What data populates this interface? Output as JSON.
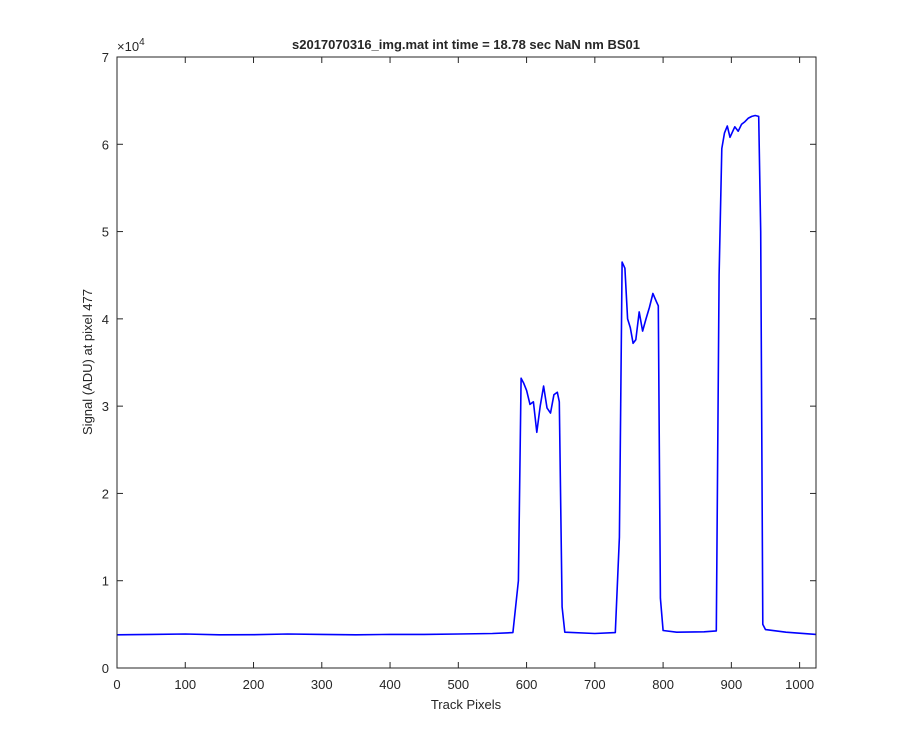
{
  "chart_data": {
    "type": "line",
    "title": "s2017070316_img.mat int time = 18.78 sec  NaN nm BS01",
    "xlabel": "Track Pixels",
    "ylabel": "Signal (ADU) at pixel 477",
    "exponent_label": "×10",
    "exponent_power": "4",
    "xlim": [
      0,
      1024
    ],
    "ylim": [
      0,
      70000
    ],
    "x_ticks": [
      0,
      100,
      200,
      300,
      400,
      500,
      600,
      700,
      800,
      900,
      1000
    ],
    "x_tick_labels": [
      "0",
      "100",
      "200",
      "300",
      "400",
      "500",
      "600",
      "700",
      "800",
      "900",
      "1000"
    ],
    "y_ticks": [
      0,
      10000,
      20000,
      30000,
      40000,
      50000,
      60000,
      70000
    ],
    "y_tick_labels": [
      "0",
      "1",
      "2",
      "3",
      "4",
      "5",
      "6",
      "7"
    ],
    "grid": false,
    "legend": "none",
    "line_color": "#0000ff",
    "axis_color": "#262626",
    "series": [
      {
        "x": [
          0,
          50,
          100,
          150,
          200,
          250,
          300,
          350,
          400,
          450,
          500,
          550,
          580,
          588,
          592,
          596,
          600,
          605,
          610,
          615,
          620,
          625,
          630,
          635,
          640,
          645,
          648,
          652,
          656,
          700,
          730,
          736,
          740,
          744,
          748,
          752,
          756,
          760,
          765,
          770,
          775,
          780,
          785,
          790,
          793,
          796,
          800,
          820,
          860,
          878,
          882,
          886,
          890,
          894,
          898,
          905,
          910,
          915,
          920,
          925,
          930,
          935,
          940,
          943,
          946,
          950,
          980,
          1024
        ],
        "y": [
          3800,
          3850,
          3900,
          3800,
          3820,
          3900,
          3850,
          3800,
          3850,
          3850,
          3900,
          3950,
          4050,
          10000,
          33200,
          32600,
          31800,
          30200,
          30500,
          27000,
          30000,
          32300,
          29800,
          29200,
          31300,
          31600,
          30500,
          7000,
          4100,
          3950,
          4050,
          15000,
          46500,
          45800,
          40000,
          39000,
          37200,
          37600,
          40800,
          38600,
          40000,
          41300,
          42900,
          42000,
          41500,
          8000,
          4300,
          4100,
          4150,
          4250,
          45000,
          59500,
          61300,
          62100,
          60800,
          62000,
          61500,
          62300,
          62600,
          63000,
          63200,
          63300,
          63200,
          50000,
          5000,
          4400,
          4100,
          3850
        ]
      }
    ]
  }
}
